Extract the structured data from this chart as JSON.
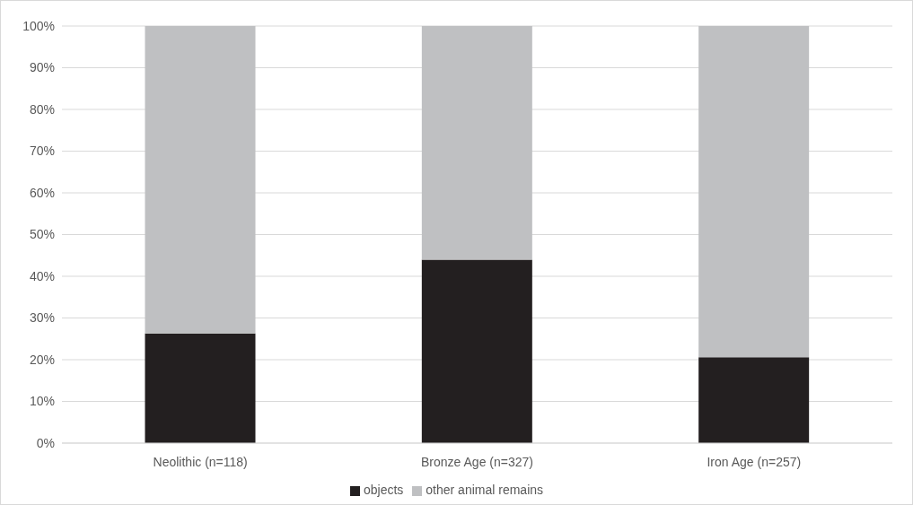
{
  "chart_data": {
    "type": "bar",
    "stacked": true,
    "categories": [
      "Neolithic (n=118)",
      "Bronze Age (n=327)",
      "Iron Age (n=257)"
    ],
    "series": [
      {
        "name": "objects",
        "color": "#231f20",
        "values": [
          26.3,
          44,
          20.6
        ]
      },
      {
        "name": "other animal remains",
        "color": "#bfc0c2",
        "values": [
          73.7,
          56,
          79.4
        ]
      }
    ],
    "ylim": [
      0,
      100
    ],
    "yticks": [
      {
        "value": 0,
        "label": "0%"
      },
      {
        "value": 10,
        "label": "10%"
      },
      {
        "value": 20,
        "label": "20%"
      },
      {
        "value": 30,
        "label": "30%"
      },
      {
        "value": 40,
        "label": "40%"
      },
      {
        "value": 50,
        "label": "50%"
      },
      {
        "value": 60,
        "label": "60%"
      },
      {
        "value": 70,
        "label": "70%"
      },
      {
        "value": 80,
        "label": "80%"
      },
      {
        "value": 90,
        "label": "90%"
      },
      {
        "value": 100,
        "label": "100%"
      }
    ],
    "grid": "y",
    "legend": "bottom"
  }
}
